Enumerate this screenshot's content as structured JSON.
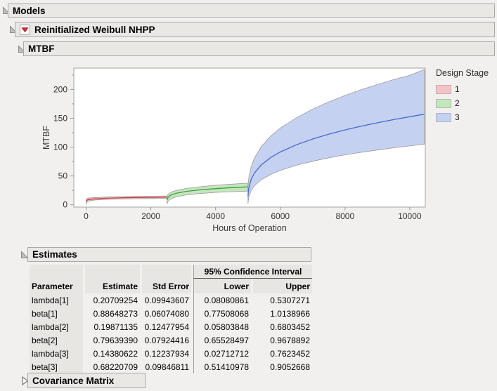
{
  "outline": {
    "models": {
      "title": "Models"
    },
    "weibull": {
      "title": "Reinitialized Weibull NHPP"
    },
    "mtbf": {
      "title": "MTBF"
    },
    "estimates": {
      "title": "Estimates"
    },
    "covariance": {
      "title": "Covariance Matrix"
    }
  },
  "colors": {
    "page_bg": "#f1f0ee",
    "bar_bg": "#e9e8e5",
    "bar_border": "#a9a9a6",
    "plot_frame": "#a3a3a0",
    "band_edge": "#9b9b98",
    "menu_red": "#d42a2a"
  },
  "chart_data": {
    "type": "area",
    "title": "",
    "xlabel": "Hours of Operation",
    "ylabel": "MTBF",
    "xlim": [
      -380,
      10480
    ],
    "ylim": [
      -4,
      237
    ],
    "xticks": [
      0,
      2000,
      4000,
      6000,
      8000,
      10000
    ],
    "yticks": [
      0,
      50,
      100,
      150,
      200
    ],
    "y_minor_ticks": [
      25,
      75,
      125,
      175,
      225
    ],
    "grid": false,
    "legend": {
      "title": "Design Stage",
      "position": "right",
      "entries": [
        {
          "label": "1",
          "color": "#f2c4c8"
        },
        {
          "label": "2",
          "color": "#c5e5bf"
        },
        {
          "label": "3",
          "color": "#c5d1f1"
        }
      ]
    },
    "series": [
      {
        "name": "1",
        "line_color": "#cd3f46",
        "fill_color": "#f2c4c8",
        "x": [
          3,
          10,
          30,
          75,
          150,
          300,
          600,
          1000,
          1500,
          2000,
          2500
        ],
        "center": [
          6.2,
          7.1,
          8.0,
          8.9,
          9.6,
          10.4,
          11.3,
          11.9,
          12.5,
          12.9,
          13.2
        ],
        "lower": [
          0.8,
          2.6,
          4.6,
          6.3,
          7.4,
          8.4,
          9.3,
          9.9,
          10.4,
          10.8,
          11.1
        ],
        "upper": [
          9.6,
          10.3,
          11.0,
          11.6,
          12.1,
          12.7,
          13.4,
          13.9,
          14.5,
          14.9,
          15.4
        ]
      },
      {
        "name": "2",
        "line_color": "#3da23c",
        "fill_color": "#c5e5bf",
        "x": [
          2503,
          2510,
          2530,
          2575,
          2650,
          2800,
          3100,
          3500,
          4000,
          4500,
          5000
        ],
        "center": [
          7.9,
          10.1,
          12.6,
          15.2,
          17.5,
          20.2,
          23.3,
          25.8,
          28.0,
          29.7,
          31.1
        ],
        "lower": [
          1.2,
          3.2,
          6.0,
          8.8,
          11.2,
          14.0,
          17.2,
          19.5,
          21.4,
          22.7,
          23.8
        ],
        "upper": [
          13.0,
          15.0,
          17.5,
          20.0,
          22.4,
          25.2,
          28.4,
          31.2,
          33.8,
          35.8,
          37.5
        ]
      },
      {
        "name": "3",
        "line_color": "#4569cf",
        "fill_color": "#c5d1f1",
        "x": [
          5003,
          5010,
          5030,
          5100,
          5200,
          5400,
          5700,
          6000,
          6500,
          7000,
          7500,
          8000,
          8500,
          9000,
          9500,
          10000,
          10450
        ],
        "center": [
          14.5,
          21.2,
          30.0,
          44.1,
          54.9,
          68.4,
          81.8,
          91.6,
          104.1,
          114.1,
          122.5,
          129.8,
          136.3,
          142.2,
          147.7,
          152.7,
          157.0
        ],
        "lower": [
          2.0,
          7.0,
          14.0,
          25.0,
          33.0,
          43.0,
          52.5,
          59.5,
          68.5,
          75.5,
          81.5,
          86.5,
          91.0,
          95.0,
          98.7,
          102.0,
          105.0
        ],
        "upper": [
          28.0,
          38.0,
          48.0,
          66.0,
          81.0,
          100.0,
          119.0,
          133.0,
          151.0,
          166.0,
          178.5,
          189.5,
          199.5,
          208.5,
          217.0,
          224.5,
          234.5
        ]
      }
    ]
  },
  "estimates_table": {
    "group_header": "95% Confidence Interval",
    "columns": [
      "Parameter",
      "Estimate",
      "Std Error",
      "Lower",
      "Upper"
    ],
    "rows": [
      [
        "lambda[1]",
        "0.20709254",
        "0.09943607",
        "0.08080861",
        "0.5307271"
      ],
      [
        "beta[1]",
        "0.88648273",
        "0.06074080",
        "0.77508068",
        "1.0138966"
      ],
      [
        "lambda[2]",
        "0.19871135",
        "0.12477954",
        "0.05803848",
        "0.6803452"
      ],
      [
        "beta[2]",
        "0.79639390",
        "0.07924416",
        "0.65528497",
        "0.9678892"
      ],
      [
        "lambda[3]",
        "0.14380622",
        "0.12237934",
        "0.02712712",
        "0.7623452"
      ],
      [
        "beta[3]",
        "0.68220709",
        "0.09846811",
        "0.51410978",
        "0.9052668"
      ]
    ]
  }
}
